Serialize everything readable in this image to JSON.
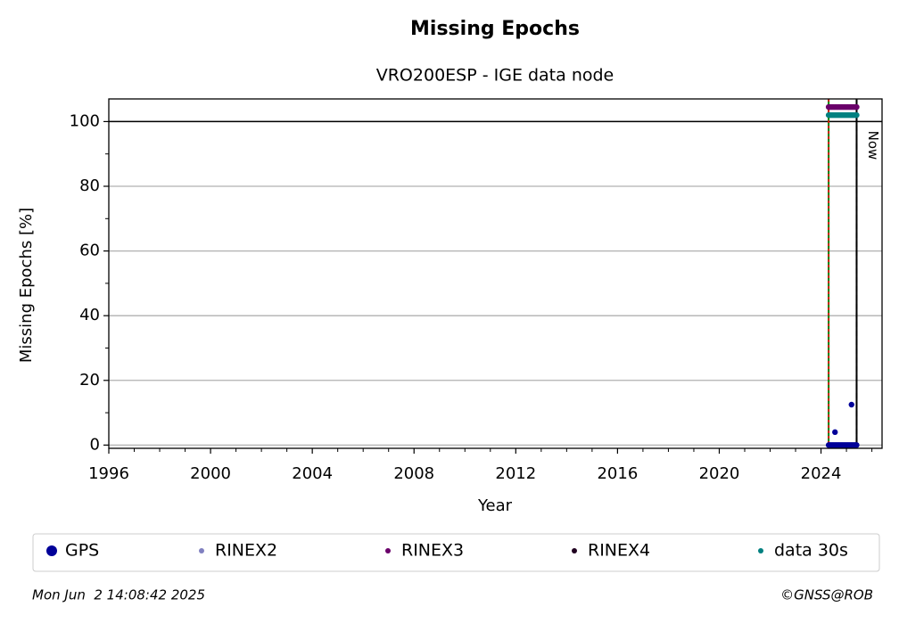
{
  "chart_data": {
    "type": "scatter",
    "title": "Missing Epochs",
    "subtitle": "VRO200ESP - IGE data node",
    "x_label": "Year",
    "y_label": "Missing Epochs [%]",
    "xlim": [
      1996,
      2026.4
    ],
    "ylim": [
      -1,
      107
    ],
    "xticks": [
      1996,
      2000,
      2004,
      2008,
      2012,
      2016,
      2020,
      2024
    ],
    "xminorticks": [
      1997,
      1998,
      1999,
      2001,
      2002,
      2003,
      2005,
      2006,
      2007,
      2009,
      2010,
      2011,
      2013,
      2014,
      2015,
      2017,
      2018,
      2019,
      2021,
      2022,
      2023,
      2025,
      2026
    ],
    "yticks": [
      0,
      20,
      40,
      60,
      80,
      100
    ],
    "yminorticks": [
      10,
      30,
      50,
      70,
      90
    ],
    "grid": true,
    "hline": 100,
    "vlines": [
      {
        "x": 2024.3,
        "color": "#008000"
      },
      {
        "x": 2025.4,
        "color": "#000000",
        "label": "Now"
      }
    ],
    "legend": "below",
    "series": [
      {
        "name": "GPS",
        "color": "#000099",
        "x": [
          2024.3,
          2024.35,
          2024.4,
          2024.45,
          2024.5,
          2024.55,
          2024.6,
          2024.65,
          2024.7,
          2024.75,
          2024.8,
          2024.85,
          2024.9,
          2024.95,
          2025.0,
          2025.05,
          2025.1,
          2025.15,
          2025.2,
          2025.25,
          2025.3,
          2025.35,
          2025.4,
          2024.55,
          2025.2
        ],
        "values": [
          0,
          0,
          0,
          0,
          0,
          0,
          0,
          0,
          0,
          0,
          0,
          0,
          0,
          0,
          0,
          0,
          0,
          0,
          0,
          0,
          0,
          0,
          0,
          4,
          12.5
        ]
      },
      {
        "name": "RINEX2",
        "color": "#8080c0",
        "x": [],
        "values": []
      },
      {
        "name": "RINEX3",
        "color": "#6a006a",
        "x": [
          2024.3,
          2024.35,
          2024.4,
          2024.45,
          2024.5,
          2024.55,
          2024.6,
          2024.65,
          2024.7,
          2024.75,
          2024.8,
          2024.85,
          2024.9,
          2024.95,
          2025.0,
          2025.05,
          2025.1,
          2025.15,
          2025.2,
          2025.25,
          2025.3,
          2025.35,
          2025.4
        ],
        "values": [
          104.5,
          104.5,
          104.5,
          104.5,
          104.5,
          104.5,
          104.5,
          104.5,
          104.5,
          104.5,
          104.5,
          104.5,
          104.5,
          104.5,
          104.5,
          104.5,
          104.5,
          104.5,
          104.5,
          104.5,
          104.5,
          104.5,
          104.5
        ]
      },
      {
        "name": "RINEX4",
        "color": "#200020",
        "x": [],
        "values": []
      },
      {
        "name": "data 30s",
        "color": "#008080",
        "x": [
          2024.3,
          2024.35,
          2024.4,
          2024.45,
          2024.5,
          2024.55,
          2024.6,
          2024.65,
          2024.7,
          2024.75,
          2024.8,
          2024.85,
          2024.9,
          2024.95,
          2025.0,
          2025.05,
          2025.1,
          2025.15,
          2025.2,
          2025.25,
          2025.3,
          2025.35,
          2025.4
        ],
        "values": [
          102,
          102,
          102,
          102,
          102,
          102,
          102,
          102,
          102,
          102,
          102,
          102,
          102,
          102,
          102,
          102,
          102,
          102,
          102,
          102,
          102,
          102,
          102
        ]
      }
    ],
    "footer_left": "Mon Jun  2 14:08:42 2025",
    "footer_right": "©GNSS@ROB"
  }
}
